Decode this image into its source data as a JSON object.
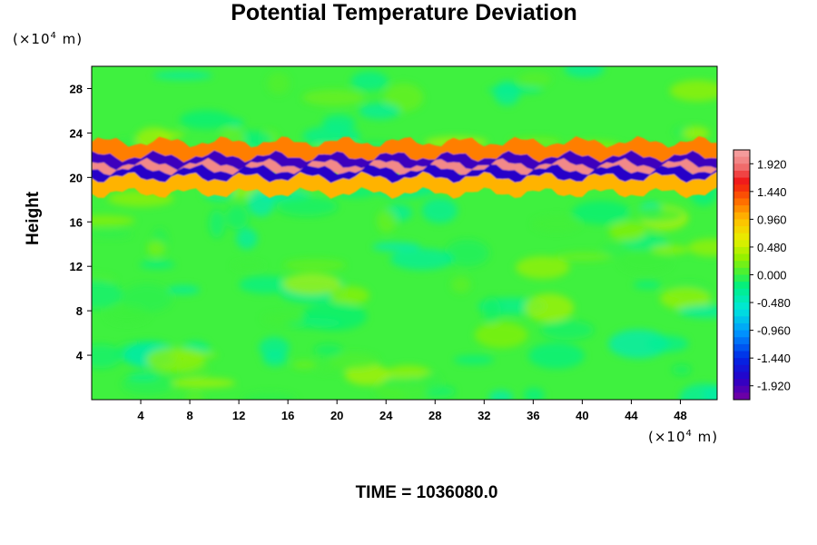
{
  "chart_data": {
    "type": "heatmap",
    "title": "Potential Temperature Deviation",
    "ylabel": "Height",
    "x_unit_prefix": "(×10",
    "x_unit_exp": "4",
    "x_unit_suffix": " m)",
    "y_unit_prefix": "(×10",
    "y_unit_exp": "4",
    "y_unit_suffix": " m)",
    "xlim": [
      0,
      51
    ],
    "ylim": [
      0,
      30
    ],
    "x_ticks": [
      4,
      8,
      12,
      16,
      20,
      24,
      28,
      32,
      36,
      40,
      44,
      48
    ],
    "y_ticks": [
      4,
      8,
      12,
      16,
      20,
      24,
      28
    ],
    "colorbar": {
      "ticks": [
        "1.920",
        "1.440",
        "0.960",
        "0.480",
        "0.000",
        "-0.480",
        "-0.960",
        "-1.440",
        "-1.920"
      ],
      "range": [
        -2.16,
        2.16
      ]
    },
    "bands": [
      {
        "y_center": 22.2,
        "value": 1.2
      },
      {
        "y_center": 21.2,
        "value": -1.9
      },
      {
        "y_center": 20.7,
        "value": 2.0
      },
      {
        "y_center": 20.0,
        "value": -1.8
      },
      {
        "y_center": 19.3,
        "value": 1.0
      }
    ],
    "footer": "TIME = 1036080.0"
  }
}
